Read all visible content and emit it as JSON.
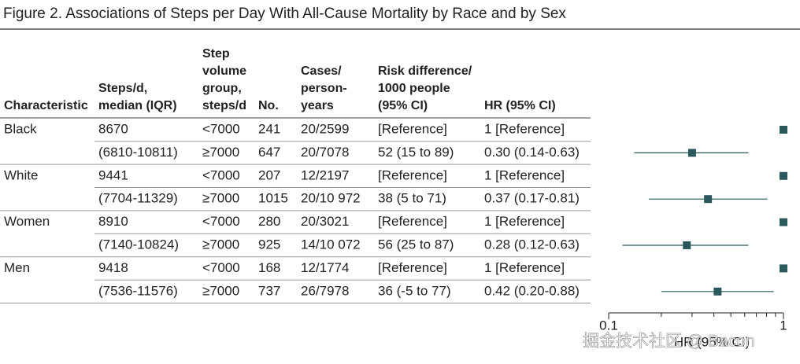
{
  "title": "Figure 2. Associations of Steps per Day With All-Cause Mortality by Race and by Sex",
  "table": {
    "headers": [
      [
        "Characteristic"
      ],
      [
        "Steps/d,",
        "median (IQR)"
      ],
      [
        "Step",
        "volume",
        "group,",
        "steps/d"
      ],
      [
        "No."
      ],
      [
        "Cases/",
        "person-",
        "years"
      ],
      [
        "Risk difference/",
        "1000 people",
        "(95% CI)"
      ],
      [
        "HR (95% CI)"
      ]
    ],
    "groups": [
      {
        "characteristic": "Black",
        "steps_median": "8670",
        "steps_iqr": "(6810-10811)",
        "rows": [
          {
            "group": "<7000",
            "no": 241,
            "cases": "20/2599",
            "risk": "[Reference]",
            "hr": "1 [Reference]"
          },
          {
            "group": "≥7000",
            "no": 647,
            "cases": "20/7078",
            "risk": "52 (15 to 89)",
            "hr": "0.30 (0.14-0.63)"
          }
        ]
      },
      {
        "characteristic": "White",
        "steps_median": "9441",
        "steps_iqr": "(7704-11329)",
        "rows": [
          {
            "group": "<7000",
            "no": 207,
            "cases": "12/2197",
            "risk": "[Reference]",
            "hr": "1 [Reference]"
          },
          {
            "group": "≥7000",
            "no": 1015,
            "cases": "20/10 972",
            "risk": "38 (5 to 71)",
            "hr": "0.37 (0.17-0.81)"
          }
        ]
      },
      {
        "characteristic": "Women",
        "steps_median": "8910",
        "steps_iqr": "(7140-10824)",
        "rows": [
          {
            "group": "<7000",
            "no": 280,
            "cases": "20/3021",
            "risk": "[Reference]",
            "hr": "1 [Reference]"
          },
          {
            "group": "≥7000",
            "no": 925,
            "cases": "14/10 072",
            "risk": "56 (25 to 87)",
            "hr": "0.28 (0.12-0.63)"
          }
        ]
      },
      {
        "characteristic": "Men",
        "steps_median": "9418",
        "steps_iqr": "(7536-11576)",
        "rows": [
          {
            "group": "<7000",
            "no": 168,
            "cases": "12/1774",
            "risk": "[Reference]",
            "hr": "1 [Reference]"
          },
          {
            "group": "≥7000",
            "no": 737,
            "cases": "26/7978",
            "risk": "36 (-5 to 77)",
            "hr": "0.42 (0.20-0.88)"
          }
        ]
      }
    ]
  },
  "chart_data": {
    "type": "forest",
    "xlabel": "HR (95% CI)",
    "log_x": true,
    "color": "#2b585c",
    "xlim": [
      0.1,
      1
    ],
    "xticks": [
      0.1,
      1
    ],
    "minor_xticks": [
      0.2,
      0.3,
      0.4,
      0.5,
      0.6,
      0.7,
      0.8,
      0.9
    ],
    "values": [
      1,
      0.3,
      1,
      0.37,
      1,
      0.28,
      1,
      0.42
    ],
    "lower": [
      null,
      0.14,
      null,
      0.17,
      null,
      0.12,
      null,
      0.2
    ],
    "upper": [
      null,
      0.63,
      null,
      0.81,
      null,
      0.63,
      null,
      0.88
    ]
  },
  "watermark": "掘金技术社区 @ Bacon"
}
